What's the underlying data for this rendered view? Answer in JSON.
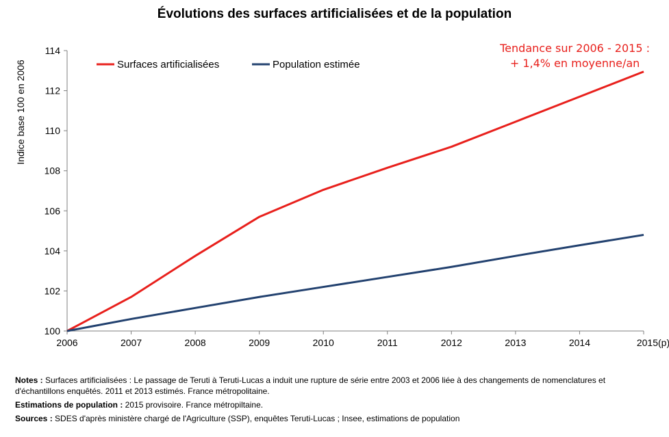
{
  "chart_data": {
    "type": "line",
    "title": "Évolutions des surfaces artificialisées  et de la population",
    "xlabel": "",
    "ylabel": "Indice base 100 en 2006",
    "categories": [
      "2006",
      "2007",
      "2008",
      "2009",
      "2010",
      "2011",
      "2012",
      "2013",
      "2014",
      "2015(p)"
    ],
    "ylim": [
      100,
      114
    ],
    "yticks": [
      "100",
      "102",
      "104",
      "106",
      "108",
      "110",
      "112",
      "114"
    ],
    "grid": false,
    "legend_position": "top-left",
    "series": [
      {
        "name": "Surfaces artificialisées",
        "color": "#e8201c",
        "values": [
          100,
          101.7,
          103.75,
          105.7,
          107.05,
          108.15,
          109.2,
          110.45,
          111.7,
          112.95
        ]
      },
      {
        "name": "Population estimée",
        "color": "#22416f",
        "values": [
          100,
          100.6,
          101.15,
          101.7,
          102.2,
          102.7,
          103.2,
          103.75,
          104.28,
          104.8
        ]
      }
    ],
    "annotation": {
      "line1": "Tendance sur 2006 - 2015 :",
      "line2": "+ 1,4% en moyenne/an"
    }
  },
  "notes": {
    "notes_label": "Notes :",
    "notes_text": " Surfaces artificialisées : Le passage de Teruti à Teruti-Lucas  a induit une rupture de série entre 2003 et 2006 liée à des changements de nomenclatures et d'échantillons enquêtés.  2011 et 2013 estimés. France métropolitaine.",
    "pop_label": "Estimations de population :",
    "pop_text": " 2015 provisoire.  France métropiltaine.",
    "sources_label": "Sources :",
    "sources_text": " SDES d'après  ministère chargé de l'Agriculture (SSP), enquêtes Teruti-Lucas  ; Insee, estimations de population"
  }
}
